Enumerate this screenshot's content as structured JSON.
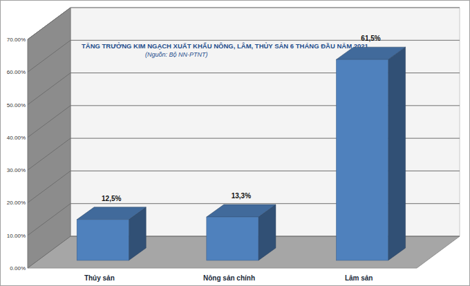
{
  "chart_data": {
    "type": "bar",
    "title": "TĂNG TRƯỞNG KIM NGẠCH XUẤT KHẨU NÔNG, LÂM, THỦY SẢN 6 THÁNG ĐẦU NĂM 2021",
    "subtitle": "(Nguồn: Bộ NN-PTNT)",
    "categories": [
      "Thủy sản",
      "Nông sản chính",
      "Lâm sản"
    ],
    "values": [
      12.5,
      13.3,
      61.5
    ],
    "value_labels": [
      "12,5%",
      "13,3%",
      "61,5%"
    ],
    "color": "#4f81bd",
    "ylim": [
      0,
      70
    ],
    "yticks": [
      {
        "value": 0,
        "label": "0.00%"
      },
      {
        "value": 10,
        "label": "10.00%"
      },
      {
        "value": 20,
        "label": "20.00%"
      },
      {
        "value": 30,
        "label": "30.00%"
      },
      {
        "value": 40,
        "label": "40.00%"
      },
      {
        "value": 50,
        "label": "50.00%"
      },
      {
        "value": 60,
        "label": "60.00%"
      },
      {
        "value": 70,
        "label": "70.00%"
      }
    ],
    "grid": true,
    "data_labels": true
  }
}
